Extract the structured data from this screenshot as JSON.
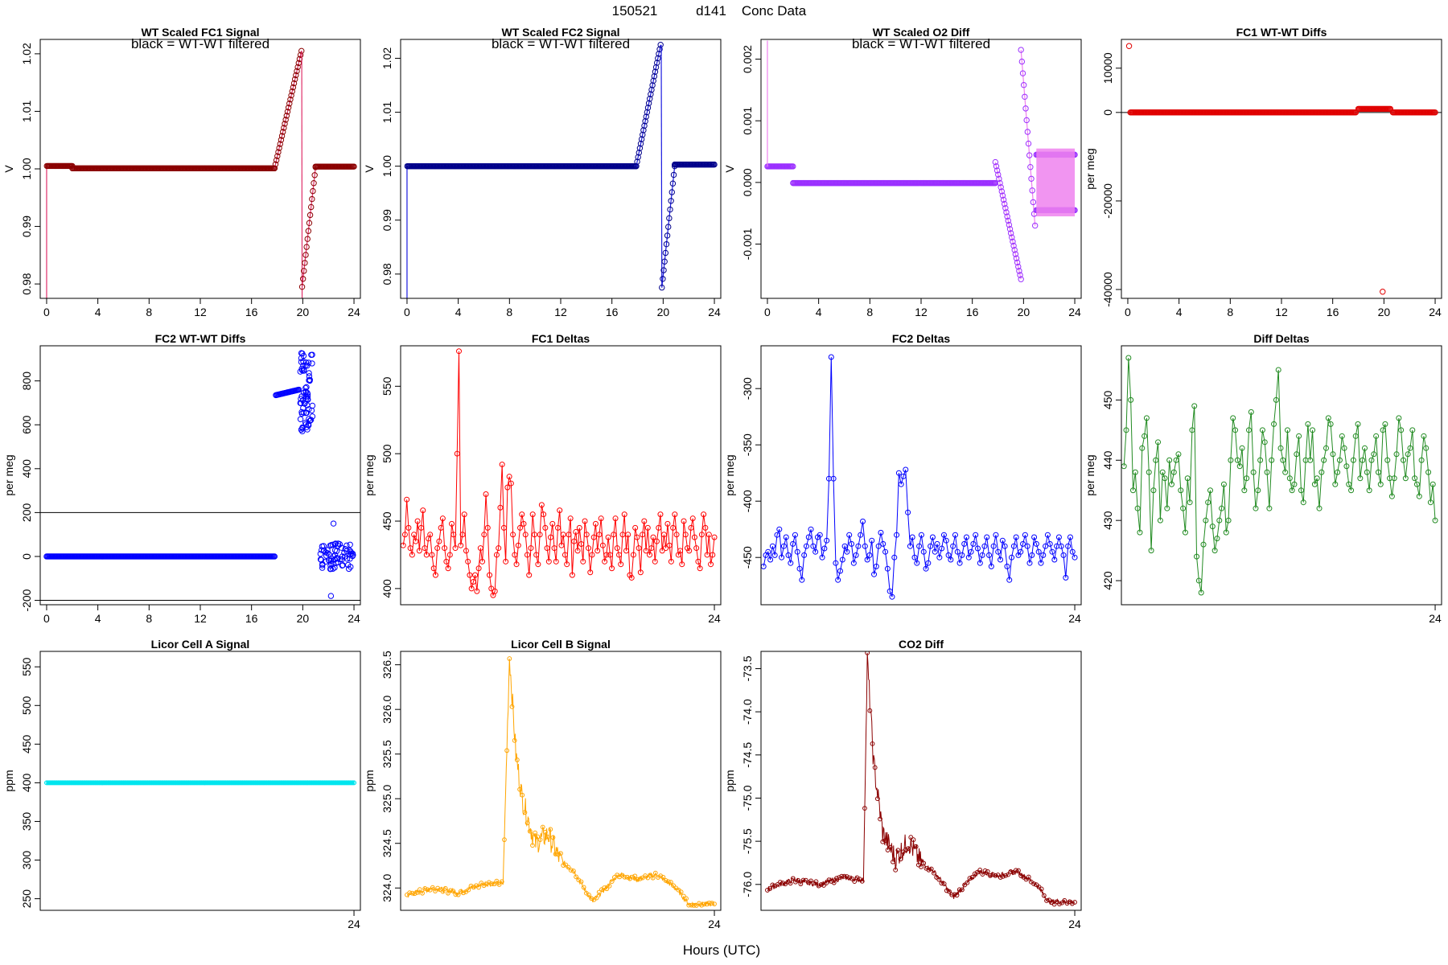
{
  "page": {
    "title_parts": [
      "150521",
      "d141",
      "Conc Data"
    ],
    "xlabel": "Hours (UTC)"
  },
  "chart_data": [
    {
      "id": "fc1sig",
      "type": "scatter",
      "title": "WT Scaled FC1 Signal",
      "note": "black = WT-WT filtered",
      "ylabel": "V",
      "color": "#8B0000",
      "linecolor": "#E0306A",
      "xlim": [
        -0.5,
        24.5
      ],
      "ylim": [
        0.9775,
        1.0225
      ],
      "xticks": [
        0,
        4,
        8,
        12,
        16,
        20,
        24
      ],
      "yticks": [
        0.98,
        0.99,
        1.0,
        1.01,
        1.02
      ],
      "ytick_labels": [
        "0.98",
        "0.99",
        "1.00",
        "1.01",
        "1.02"
      ],
      "box": true,
      "markers": "circle",
      "segments": [
        {
          "x": [
            0,
            0
          ],
          "y": [
            0.9775,
            1.0005
          ]
        },
        {
          "x": [
            0.02,
            2.0
          ],
          "y": [
            1.0005,
            1.0005
          ]
        },
        {
          "x": [
            2.0,
            17.8
          ],
          "y": [
            1.0001,
            1.0001
          ]
        },
        {
          "x": [
            17.8,
            19.9
          ],
          "y": [
            1.0001,
            1.0205
          ]
        },
        {
          "x": [
            19.92,
            19.95
          ],
          "y": [
            1.0205,
            0.9775
          ]
        },
        {
          "x": [
            19.95,
            21.0
          ],
          "y": [
            0.9795,
            1.0003
          ]
        },
        {
          "x": [
            21.0,
            24.0
          ],
          "y": [
            1.0004,
            1.0004
          ]
        }
      ],
      "dense": true
    },
    {
      "id": "fc2sig",
      "type": "scatter",
      "title": "WT Scaled FC2 Signal",
      "note": "black = WT-WT filtered",
      "ylabel": "V",
      "color": "#00008B",
      "linecolor": "#1A1AE0",
      "xlim": [
        -0.5,
        24.5
      ],
      "ylim": [
        0.9755,
        1.0235
      ],
      "xticks": [
        0,
        4,
        8,
        12,
        16,
        20,
        24
      ],
      "yticks": [
        0.98,
        0.99,
        1.0,
        1.01,
        1.02
      ],
      "ytick_labels": [
        "0.98",
        "0.99",
        "1.00",
        "1.01",
        "1.02"
      ],
      "box": true,
      "markers": "circle",
      "segments": [
        {
          "x": [
            0,
            0
          ],
          "y": [
            0.9755,
            1.0
          ]
        },
        {
          "x": [
            0.02,
            17.9
          ],
          "y": [
            1.0,
            1.0
          ]
        },
        {
          "x": [
            17.9,
            19.8
          ],
          "y": [
            1.0,
            1.0225
          ]
        },
        {
          "x": [
            19.85,
            19.9
          ],
          "y": [
            1.0225,
            0.9775
          ]
        },
        {
          "x": [
            19.9,
            20.9
          ],
          "y": [
            0.9775,
            1.0
          ]
        },
        {
          "x": [
            20.9,
            24.0
          ],
          "y": [
            1.0003,
            1.0003
          ]
        }
      ],
      "dense": true
    },
    {
      "id": "o2diff",
      "type": "scatter",
      "title": "WT Scaled O2 Diff",
      "note": "black = WT-WT filtered",
      "ylabel": "V",
      "color": "#9B30FF",
      "linecolor": "#EE82EE",
      "xlim": [
        -0.5,
        24.5
      ],
      "ylim": [
        -0.00188,
        0.00232
      ],
      "xticks": [
        0,
        4,
        8,
        12,
        16,
        20,
        24
      ],
      "yticks": [
        -0.001,
        0.0,
        0.001,
        0.002
      ],
      "ytick_labels": [
        "-0.001",
        "0.000",
        "0.001",
        "0.002"
      ],
      "box": true,
      "markers": "circle",
      "segments": [
        {
          "x": [
            0,
            2.0
          ],
          "y": [
            0.00026,
            0.00026
          ]
        },
        {
          "x": [
            2.0,
            17.8
          ],
          "y": [
            -1e-05,
            -1e-05
          ]
        },
        {
          "x": [
            17.8,
            19.8
          ],
          "y": [
            0.00033,
            -0.00157
          ]
        },
        {
          "x": [
            19.8,
            20.9
          ],
          "y": [
            0.00215,
            -0.0007
          ]
        },
        {
          "x": [
            21.0,
            24.0
          ],
          "y": [
            0.00045,
            0.00045
          ]
        },
        {
          "x": [
            21.0,
            24.0
          ],
          "y": [
            -0.00045,
            -0.00045
          ]
        }
      ],
      "dense": true
    },
    {
      "id": "fc1wt",
      "type": "scatter",
      "title": "FC1 WT-WT Diffs",
      "ylabel": "per meg",
      "color": "#E00000",
      "xlim": [
        -0.5,
        24.5
      ],
      "ylim": [
        -42000,
        16500
      ],
      "xticks": [
        0,
        4,
        8,
        12,
        16,
        20,
        24
      ],
      "yticks": [
        -40000,
        -20000,
        0,
        10000
      ],
      "ytick_labels": [
        "-40000",
        "-20000",
        "0",
        "10000"
      ],
      "box": true,
      "markers": "circle",
      "hlines": [
        0
      ],
      "points": [
        [
          0.1,
          15000
        ],
        [
          19.9,
          -40500
        ]
      ],
      "segments": [
        {
          "x": [
            0.2,
            17.8
          ],
          "y": [
            0,
            0
          ]
        },
        {
          "x": [
            18.0,
            20.5
          ],
          "y": [
            800,
            800
          ]
        },
        {
          "x": [
            20.7,
            24
          ],
          "y": [
            0,
            0
          ]
        }
      ],
      "dense": true
    },
    {
      "id": "fc2wt",
      "type": "scatter",
      "title": "FC2 WT-WT Diffs",
      "ylabel": "per meg",
      "color": "#0000FF",
      "xlim": [
        -0.5,
        24.5
      ],
      "ylim": [
        -220,
        960
      ],
      "xticks": [
        0,
        4,
        8,
        12,
        16,
        20,
        24
      ],
      "yticks": [
        -200,
        0,
        200,
        400,
        600,
        800
      ],
      "ytick_labels": [
        "-200",
        "0",
        "200",
        "400",
        "600",
        "800"
      ],
      "box": true,
      "markers": "circle",
      "hlines": [
        200,
        -200
      ],
      "segments": [
        {
          "x": [
            0,
            17.8
          ],
          "y": [
            0,
            0
          ]
        },
        {
          "x": [
            17.9,
            19.7
          ],
          "y": [
            735,
            760
          ]
        }
      ],
      "scatter_y_range": [
        [
          19.8,
          20.8,
          570,
          930
        ],
        [
          21.3,
          24.0,
          -60,
          60
        ]
      ],
      "points": [
        [
          22.4,
          150
        ],
        [
          22.2,
          -180
        ]
      ],
      "dense": true
    },
    {
      "id": "fc1d",
      "type": "line",
      "title": "FC1 Deltas",
      "ylabel": "per meg",
      "color": "#FF0000",
      "xlim": [
        -0.5,
        24.5
      ],
      "ylim": [
        388,
        580
      ],
      "xticks": [
        24
      ],
      "yticks": [
        400,
        450,
        500,
        550
      ],
      "ytick_labels": [
        "400",
        "450",
        "500",
        "550"
      ],
      "box": true,
      "markers": "circle",
      "values": [
        432,
        440,
        466,
        445,
        430,
        425,
        440,
        435,
        450,
        428,
        445,
        458,
        430,
        425,
        437,
        440,
        425,
        415,
        410,
        430,
        435,
        445,
        452,
        430,
        420,
        415,
        425,
        448,
        440,
        430,
        500,
        576,
        432,
        440,
        455,
        428,
        420,
        410,
        400,
        405,
        410,
        398,
        415,
        430,
        420,
        440,
        470,
        445,
        410,
        400,
        395,
        398,
        425,
        430,
        460,
        492,
        445,
        420,
        475,
        483,
        478,
        440,
        425,
        418,
        432,
        445,
        455,
        448,
        440,
        425,
        410,
        430,
        455,
        440,
        425,
        418,
        440,
        462,
        455,
        445,
        430,
        420,
        438,
        448,
        430,
        420,
        445,
        458,
        432,
        440,
        425,
        418,
        440,
        452,
        410,
        435,
        442,
        428,
        445,
        433,
        420,
        450,
        440,
        430,
        412,
        425,
        438,
        448,
        428,
        440,
        452,
        432,
        420,
        425,
        438,
        425,
        415,
        440,
        452,
        430,
        425,
        418,
        440,
        455,
        428,
        440,
        410,
        408,
        425,
        445,
        438,
        430,
        412,
        440,
        450,
        428,
        445,
        425,
        430,
        438,
        420,
        435,
        445,
        455,
        428,
        440,
        430,
        448,
        432,
        420,
        445,
        455,
        440,
        425,
        428,
        418,
        450,
        440,
        430,
        428,
        445,
        452,
        438,
        430,
        420,
        415,
        440,
        455,
        445,
        425,
        440,
        418,
        425,
        438
      ],
      "dense": false
    },
    {
      "id": "fc2d",
      "type": "line",
      "title": "FC2 Deltas",
      "ylabel": "per meg",
      "color": "#0000FF",
      "xlim": [
        -0.5,
        24.5
      ],
      "ylim": [
        -492,
        -262
      ],
      "xticks": [
        24
      ],
      "yticks": [
        -450,
        -400,
        -350,
        -300
      ],
      "ytick_labels": [
        "-450",
        "-400",
        "-350",
        "-300"
      ],
      "box": true,
      "markers": "circle",
      "values": [
        -458,
        -448,
        -445,
        -452,
        -440,
        -448,
        -430,
        -425,
        -450,
        -440,
        -432,
        -448,
        -455,
        -438,
        -430,
        -445,
        -460,
        -470,
        -448,
        -440,
        -432,
        -425,
        -440,
        -445,
        -432,
        -430,
        -450,
        -442,
        -435,
        -380,
        -272,
        -380,
        -455,
        -470,
        -462,
        -452,
        -440,
        -445,
        -430,
        -438,
        -455,
        -448,
        -440,
        -430,
        -418,
        -440,
        -452,
        -448,
        -435,
        -465,
        -458,
        -440,
        -428,
        -438,
        -445,
        -460,
        -480,
        -485,
        -450,
        -430,
        -375,
        -385,
        -378,
        -372,
        -410,
        -440,
        -432,
        -450,
        -455,
        -440,
        -430,
        -445,
        -460,
        -455,
        -440,
        -432,
        -445,
        -438,
        -450,
        -442,
        -430,
        -435,
        -448,
        -452,
        -440,
        -430,
        -445,
        -455,
        -448,
        -438,
        -432,
        -450,
        -445,
        -438,
        -430,
        -442,
        -455,
        -448,
        -440,
        -432,
        -448,
        -458,
        -440,
        -430,
        -445,
        -452,
        -435,
        -440,
        -458,
        -470,
        -450,
        -440,
        -432,
        -448,
        -445,
        -438,
        -430,
        -440,
        -455,
        -448,
        -432,
        -438,
        -445,
        -455,
        -448,
        -440,
        -430,
        -438,
        -445,
        -452,
        -440,
        -432,
        -440,
        -448,
        -468,
        -440,
        -432,
        -445,
        -450
      ],
      "dense": false
    },
    {
      "id": "diffd",
      "type": "line",
      "title": "Diff Deltas",
      "ylabel": "per meg",
      "color": "#228B22",
      "xlim": [
        -0.5,
        24.5
      ],
      "ylim": [
        416,
        459
      ],
      "xticks": [
        24
      ],
      "yticks": [
        420,
        430,
        440,
        450
      ],
      "ytick_labels": [
        "420",
        "430",
        "440",
        "450"
      ],
      "box": true,
      "markers": "circle",
      "values": [
        439,
        445,
        457,
        450,
        435,
        438,
        432,
        428,
        442,
        444,
        447,
        438,
        425,
        435,
        440,
        443,
        430,
        438,
        437,
        432,
        440,
        436,
        438,
        440,
        441,
        435,
        432,
        428,
        437,
        433,
        445,
        449,
        424,
        420,
        418,
        426,
        430,
        433,
        435,
        429,
        425,
        427,
        430,
        432,
        436,
        428,
        430,
        440,
        447,
        445,
        440,
        439,
        442,
        435,
        437,
        445,
        448,
        438,
        432,
        435,
        440,
        445,
        443,
        438,
        432,
        440,
        446,
        450,
        455,
        442,
        440,
        438,
        445,
        437,
        435,
        436,
        441,
        444,
        435,
        433,
        440,
        446,
        440,
        445,
        436,
        437,
        432,
        438,
        440,
        442,
        447,
        446,
        441,
        436,
        438,
        440,
        444,
        442,
        439,
        436,
        435,
        440,
        444,
        446,
        437,
        440,
        442,
        438,
        435,
        440,
        441,
        444,
        438,
        436,
        445,
        446,
        440,
        437,
        434,
        437,
        441,
        447,
        445,
        440,
        437,
        441,
        442,
        445,
        437,
        436,
        434,
        440,
        444,
        442,
        438,
        433,
        436,
        430
      ],
      "dense": false
    },
    {
      "id": "licA",
      "type": "line",
      "title": "Licor Cell A Signal",
      "ylabel": "ppm",
      "color": "#00E5EE",
      "xlim": [
        -0.5,
        24.5
      ],
      "ylim": [
        235,
        570
      ],
      "xticks": [
        24
      ],
      "yticks": [
        250,
        300,
        350,
        400,
        450,
        500,
        550
      ],
      "ytick_labels": [
        "250",
        "300",
        "350",
        "400",
        "450",
        "500",
        "550"
      ],
      "box": true,
      "markers": "circle",
      "constant": 400,
      "dense": true
    },
    {
      "id": "licB",
      "type": "line",
      "title": "Licor Cell B Signal",
      "ylabel": "ppm",
      "color": "#FFA500",
      "xlim": [
        -0.5,
        24.5
      ],
      "ylim": [
        323.75,
        326.65
      ],
      "xticks": [
        24
      ],
      "yticks": [
        324.0,
        324.5,
        325.0,
        325.5,
        326.0,
        326.5
      ],
      "ytick_labels": [
        "324.0",
        "324.5",
        "325.0",
        "325.5",
        "326.0",
        "326.5"
      ],
      "box": true,
      "markers": "circle",
      "profile": [
        [
          0,
          323.92
        ],
        [
          2,
          324.0
        ],
        [
          4,
          323.95
        ],
        [
          6,
          324.05
        ],
        [
          7.5,
          324.05
        ],
        [
          8,
          326.6
        ],
        [
          8.5,
          325.5
        ],
        [
          9,
          325.0
        ],
        [
          10,
          324.5
        ],
        [
          11,
          324.6
        ],
        [
          12,
          324.3
        ],
        [
          13,
          324.2
        ],
        [
          13.8,
          324.0
        ],
        [
          14.5,
          323.85
        ],
        [
          15.5,
          324.0
        ],
        [
          16.5,
          324.15
        ],
        [
          18,
          324.1
        ],
        [
          19.5,
          324.15
        ],
        [
          21,
          324.0
        ],
        [
          22,
          323.82
        ],
        [
          24,
          323.82
        ]
      ],
      "dense": true
    },
    {
      "id": "co2d",
      "type": "line",
      "title": "CO2 Diff",
      "ylabel": "ppm",
      "color": "#8B0000",
      "xlim": [
        -0.5,
        24.5
      ],
      "ylim": [
        -76.3,
        -73.3
      ],
      "xticks": [
        24
      ],
      "yticks": [
        -76.0,
        -75.5,
        -75.0,
        -74.5,
        -74.0,
        -73.5
      ],
      "ytick_labels": [
        "-76.0",
        "-75.5",
        "-75.0",
        "-74.5",
        "-74.0",
        "-73.5"
      ],
      "box": true,
      "markers": "circle",
      "profile": [
        [
          0,
          -76.05
        ],
        [
          2,
          -75.95
        ],
        [
          4,
          -76.0
        ],
        [
          6,
          -75.92
        ],
        [
          7.5,
          -75.95
        ],
        [
          7.8,
          -73.4
        ],
        [
          8.3,
          -74.6
        ],
        [
          9,
          -75.4
        ],
        [
          10,
          -75.7
        ],
        [
          11,
          -75.5
        ],
        [
          12,
          -75.75
        ],
        [
          13,
          -75.85
        ],
        [
          13.8,
          -76.0
        ],
        [
          14.5,
          -76.15
        ],
        [
          15.5,
          -76.0
        ],
        [
          16.5,
          -75.85
        ],
        [
          18,
          -75.9
        ],
        [
          19.5,
          -75.85
        ],
        [
          21,
          -76.0
        ],
        [
          22,
          -76.2
        ],
        [
          24,
          -76.2
        ]
      ],
      "dense": true
    }
  ]
}
